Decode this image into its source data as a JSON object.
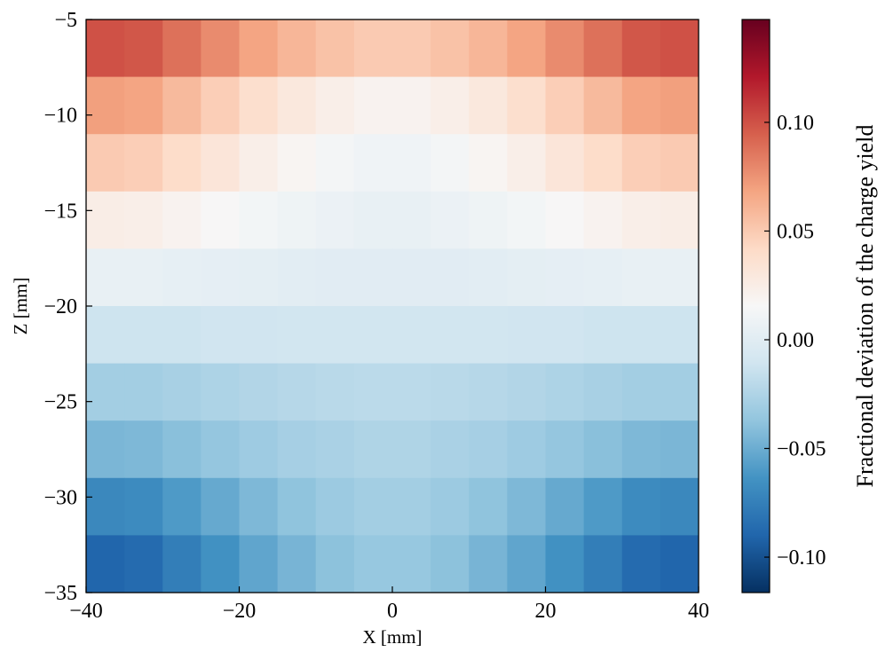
{
  "chart_data": {
    "type": "heatmap",
    "x_label": "X [mm]",
    "y_label": "Z [mm]",
    "colorbar_label": "Fractional deviation of the charge yield",
    "x_edges": [
      -40,
      -35,
      -30,
      -25,
      -20,
      -15,
      -10,
      -5,
      0,
      5,
      10,
      15,
      20,
      25,
      30,
      35,
      40
    ],
    "y_edges": [
      -5,
      -8,
      -11,
      -14,
      -17,
      -20,
      -23,
      -26,
      -29,
      -32,
      -35
    ],
    "values": [
      [
        0.1,
        0.098,
        0.088,
        0.078,
        0.068,
        0.06,
        0.054,
        0.05,
        0.05,
        0.054,
        0.06,
        0.068,
        0.078,
        0.088,
        0.098,
        0.1
      ],
      [
        0.07,
        0.068,
        0.058,
        0.048,
        0.038,
        0.03,
        0.024,
        0.02,
        0.02,
        0.024,
        0.03,
        0.038,
        0.048,
        0.058,
        0.068,
        0.07
      ],
      [
        0.05,
        0.048,
        0.04,
        0.032,
        0.024,
        0.018,
        0.013,
        0.01,
        0.01,
        0.013,
        0.018,
        0.024,
        0.032,
        0.04,
        0.048,
        0.05
      ],
      [
        0.025,
        0.024,
        0.02,
        0.016,
        0.012,
        0.009,
        0.007,
        0.005,
        0.005,
        0.007,
        0.009,
        0.012,
        0.016,
        0.02,
        0.024,
        0.025
      ],
      [
        0.005,
        0.005,
        0.004,
        0.003,
        0.002,
        0.001,
        0,
        0,
        0,
        0,
        0.001,
        0.002,
        0.003,
        0.004,
        0.005,
        0.005
      ],
      [
        -0.012,
        -0.012,
        -0.012,
        -0.011,
        -0.011,
        -0.01,
        -0.01,
        -0.01,
        -0.01,
        -0.01,
        -0.01,
        -0.011,
        -0.011,
        -0.012,
        -0.012,
        -0.012
      ],
      [
        -0.03,
        -0.03,
        -0.028,
        -0.026,
        -0.024,
        -0.022,
        -0.021,
        -0.02,
        -0.02,
        -0.021,
        -0.022,
        -0.024,
        -0.026,
        -0.028,
        -0.03,
        -0.03
      ],
      [
        -0.045,
        -0.044,
        -0.04,
        -0.036,
        -0.032,
        -0.029,
        -0.027,
        -0.025,
        -0.025,
        -0.027,
        -0.029,
        -0.032,
        -0.036,
        -0.04,
        -0.044,
        -0.045
      ],
      [
        -0.07,
        -0.068,
        -0.06,
        -0.052,
        -0.044,
        -0.038,
        -0.033,
        -0.03,
        -0.03,
        -0.033,
        -0.038,
        -0.044,
        -0.052,
        -0.06,
        -0.068,
        -0.07
      ],
      [
        -0.09,
        -0.087,
        -0.076,
        -0.065,
        -0.054,
        -0.046,
        -0.039,
        -0.035,
        -0.035,
        -0.039,
        -0.046,
        -0.054,
        -0.065,
        -0.076,
        -0.087,
        -0.09
      ]
    ],
    "colormap": [
      "#053061",
      "#2166ac",
      "#4393c3",
      "#92c5de",
      "#d1e5f0",
      "#f7f7f7",
      "#fddbc7",
      "#f4a582",
      "#d6604d",
      "#b2182b",
      "#67001f"
    ],
    "xlim": [
      -40,
      40
    ],
    "xticks": [
      {
        "value": -40,
        "label": "−40"
      },
      {
        "value": -20,
        "label": "−20"
      },
      0,
      20,
      40
    ],
    "ylim": [
      -35,
      -5
    ],
    "yticks": [
      {
        "value": -35,
        "label": "−35"
      },
      {
        "value": -30,
        "label": "−30"
      },
      {
        "value": -25,
        "label": "−25"
      },
      {
        "value": -20,
        "label": "−20"
      },
      {
        "value": -15,
        "label": "−15"
      },
      {
        "value": -10,
        "label": "−10"
      },
      {
        "value": -5,
        "label": "−5"
      }
    ],
    "zlim": [
      -0.1163,
      0.1473
    ],
    "zticks": [
      {
        "value": -0.1,
        "label": "−0.10"
      },
      {
        "value": -0.05,
        "label": "−0.05"
      },
      {
        "value": 0,
        "label": "0.00"
      },
      {
        "value": 0.05,
        "label": "0.05"
      },
      {
        "value": 0.1,
        "label": "0.10"
      }
    ]
  }
}
